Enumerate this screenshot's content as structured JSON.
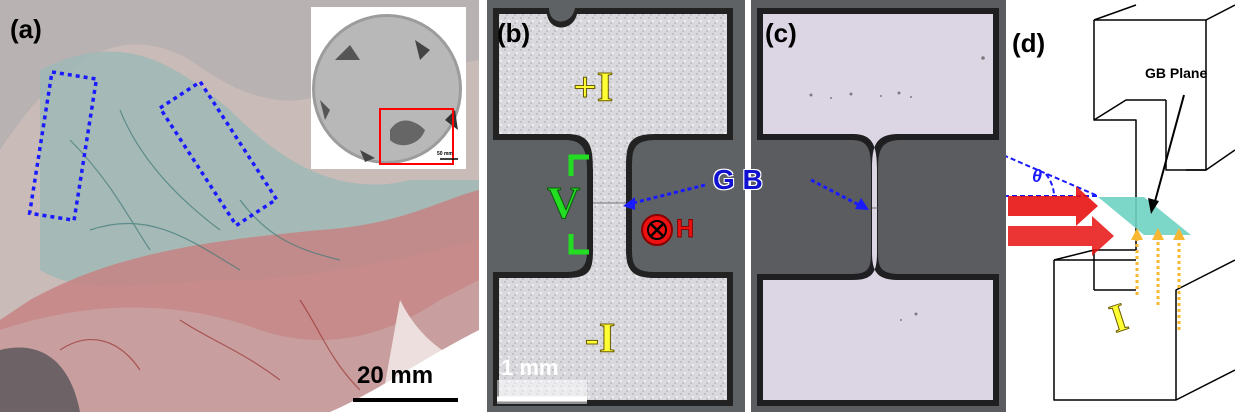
{
  "panels": {
    "a": {
      "label": "(a)",
      "scale_bar": "20 mm",
      "inset_scale": "50 mm"
    },
    "b": {
      "label": "(b)",
      "plus_current": "+I",
      "minus_current": "-I",
      "voltage": "V",
      "field": "H",
      "scale_bar": "1 mm"
    },
    "c": {
      "label": "(c)"
    },
    "d": {
      "label": "(d)",
      "plane_label": "GB Plane",
      "angle": "θ",
      "current": "I"
    }
  },
  "grain_boundary_label": "G B",
  "colors": {
    "dashed_box": "#1a1aff",
    "inset_box": "#ff0000",
    "voltage": "#22dd22",
    "current": "#ffff33",
    "field": "#ee1111",
    "gb_plane": "#6fd3c2",
    "arrow_light": "#f7b731"
  }
}
